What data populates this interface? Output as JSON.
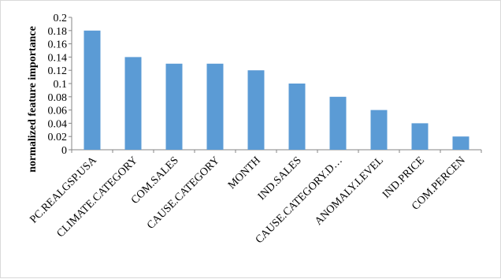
{
  "chart_data": {
    "type": "bar",
    "title": "",
    "xlabel": "",
    "ylabel": "normalized feature importance",
    "categories": [
      "PC.REALGSP.USA",
      "CLIMATE.CATEGORY",
      "COM.SALES",
      "CAUSE.CATEGORY",
      "MONTH",
      "IND.SALES",
      "CAUSE.CATEGORY.D…",
      "ANOMALY.LEVEL",
      "IND.PRICE",
      "COM.PERCEN"
    ],
    "values": [
      0.18,
      0.14,
      0.13,
      0.13,
      0.12,
      0.1,
      0.08,
      0.06,
      0.04,
      0.02
    ],
    "ylim": [
      0,
      0.2
    ],
    "yticks": [
      "0",
      "0.02",
      "0.04",
      "0.06",
      "0.08",
      "0.1",
      "0.12",
      "0.14",
      "0.16",
      "0.18",
      "0.2"
    ],
    "grid": false,
    "legend": "none",
    "bar_color": "#5b9bd5"
  }
}
